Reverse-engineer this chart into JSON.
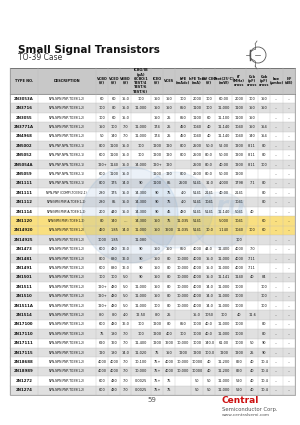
{
  "title": "Small Signal Transistors",
  "subtitle": "TO-39 Case",
  "page_number": "59",
  "bg_color": "#ffffff",
  "header_bg": "#cccccc",
  "alt_row_bg": "#e0e0e0",
  "col_headers": [
    "TYPE NO.",
    "DESCRIPTION",
    "VCBO\n(V)",
    "VCEO\n(V)",
    "VEBO\n(V)",
    "ICBO/IB\n(pA)\n(ICBO/1\nTEST/4\nTEST/6\nTEST/6)",
    "ICEO\n(V)",
    "VCES",
    "hFE\n(mAdc)",
    "hFE Test\n(mA)",
    "BV CEO\n(V)",
    "Ptot(25°C)\n(mW)",
    "fT\n(MHz)\ncross",
    "Ccb\n(pF)\ncross",
    "Cob\n(pF)\ncross",
    "hoe\n(μmho)",
    "NF\n(dB)"
  ],
  "col_widths_rel": [
    18,
    38,
    8,
    8,
    7,
    13,
    8,
    8,
    10,
    8,
    8,
    11,
    9,
    8,
    8,
    8,
    8
  ],
  "rows": [
    [
      "2N3053A",
      "NPN,NPN,PNP,TO39(1,2)",
      "60",
      "60",
      "15.0",
      "100",
      "150",
      "150",
      "100",
      "2000",
      "100",
      "60.00",
      "2000",
      "100",
      "150",
      "...",
      "..."
    ],
    [
      "2N3716",
      "NPN,NPN,PNP,TO39(1,2)",
      "100",
      "80",
      "15.0",
      "11,000",
      "150",
      "150",
      "850",
      "1100",
      "100",
      "11,000",
      "1100",
      "150",
      "150",
      "...",
      "..."
    ],
    [
      "2N3055",
      "NPN,NPN,PNP,TO39(1,2)",
      "100",
      "60",
      "15.0",
      "",
      "150",
      "25",
      "850",
      "1100",
      "60",
      "11,100",
      "1100",
      "150",
      "",
      "...",
      "..."
    ],
    [
      "2N3771A",
      "NPN,NPN,PNP,TO39(1,2)",
      "150",
      "100",
      "7.0",
      "11,000",
      "174",
      "25",
      "450",
      "1040",
      "40",
      "11,140",
      "1040",
      "150",
      "154",
      "...",
      "..."
    ],
    [
      "2N4968",
      "NPN,NPN,PNP,TO39(1,2)",
      "50",
      "140",
      "7.0",
      "11,000",
      "174",
      "25",
      "450",
      "1040",
      "40",
      "11,140",
      "1040",
      "140",
      "154",
      "...",
      "..."
    ],
    [
      "2N5002",
      "NPN,PNP,NPN,TO39(2,1)",
      "800",
      "1100",
      "15.0",
      "100",
      "1200",
      "120",
      "800",
      "2500",
      "50.0",
      "52.00",
      "1200",
      "8.11",
      "80",
      "...",
      "..."
    ],
    [
      "2N5052",
      "NPN,PNP,NPN,TO39(2,1)",
      "600",
      "1100",
      "15.0",
      "100",
      "1200",
      "120",
      "800",
      "2500",
      "80.0",
      "50.00",
      "1200",
      "8.11",
      "80",
      "...",
      "..."
    ],
    [
      "2N5054A",
      "NPN,PNP,NPN,TO39(2,1)",
      "120+",
      "1140",
      "15.0",
      "14,000",
      "120+",
      "120",
      "",
      "2500",
      "80.0",
      "40.00",
      "1200",
      "8.11",
      "100",
      "...",
      "..."
    ],
    [
      "2N5059",
      "NPN,PNP,NPN,TO39(2,1)",
      "600",
      "1100",
      "15.0",
      "",
      "1200",
      "120",
      "800",
      "2500",
      "80.0",
      "50.00",
      "1200",
      "",
      "",
      "...",
      "..."
    ],
    [
      "2N1111",
      "NPN,PNP,NPN,TO39(2,1)",
      "800",
      "175",
      "14.0",
      "90",
      "1100",
      "85",
      "2500",
      "5141",
      "31.0",
      "4,000",
      "1798",
      "7.1",
      "80",
      "...",
      "..."
    ],
    [
      "2N1111",
      "NPN,PNP (COMP),TO39(2,1)",
      "280",
      "175",
      "15.0",
      "14,300",
      "90",
      "75",
      "4.0",
      "5141",
      "2141",
      "40.00",
      "2141",
      "",
      "80",
      "...",
      "..."
    ],
    [
      "2N1112",
      "NPN(NPN,PNP)A,TO39(1,2)",
      "280",
      "85",
      "15.0",
      "14,300",
      "90",
      "75",
      "4.0",
      "5141",
      "1041",
      "",
      "1041",
      "",
      "80",
      "...",
      "..."
    ],
    [
      "2N1114",
      "NPN(NPN,PNP)A,TO39(1,2)",
      "200",
      "440",
      "15.0",
      "14,300",
      "90",
      "45",
      "480",
      "5141",
      "5141",
      "11,140",
      "5041",
      "40",
      "",
      "...",
      "..."
    ],
    [
      "2N1120",
      "NPN(NPN,PNP),TO39(1,2)",
      "80",
      "140",
      "....",
      "14,300",
      "150",
      "75",
      "11,035",
      "5141",
      "",
      "5,000",
      "1041",
      "",
      "60",
      "...",
      "..."
    ],
    [
      "2N14920",
      "NPN,NPN,PNP,TO39(1,2)",
      "460",
      "1.85",
      "14.0",
      "11,000",
      "150",
      "1600",
      "11,035",
      "5141",
      "10.0",
      "1,140",
      "1040",
      "100",
      "60",
      "...",
      "..."
    ],
    [
      "2N14925",
      "NPN,NPN,PNP,TO39(1,2)",
      "1000",
      "1.85",
      "",
      "11,080",
      "",
      "",
      "",
      "",
      "",
      "",
      "100",
      "",
      "",
      "...",
      "..."
    ],
    [
      "2N1473",
      "NPN,NPN,PNP,TO39(1,2)",
      "600",
      "480",
      "16.0",
      "90",
      "150",
      "150",
      "850",
      "4000",
      "44.0",
      "11,400",
      "4000",
      "7.0",
      "",
      "...",
      "..."
    ],
    [
      "2N1481",
      "NPN,NPN,PNP,TO39(1,2)",
      "800",
      "880",
      "16.0",
      "90",
      "150",
      "80",
      "10,000",
      "4000",
      "15.0",
      "11,000",
      "4000",
      "7.11",
      "",
      "...",
      "..."
    ],
    [
      "2N1491",
      "NPN,NPN,PNP,TO39(1,2)",
      "600",
      "880",
      "16.0",
      "90",
      "150",
      "80",
      "10,000",
      "4000",
      "15.0",
      "11,000",
      "4000",
      "7.11",
      "",
      "...",
      "..."
    ],
    [
      "2N1501",
      "NPN,NPN,PNP,TO39(1,2)",
      "100",
      "100",
      "5.0",
      "90",
      "150",
      "80",
      "10,000",
      "4000",
      "15.0",
      "11,141",
      "1140",
      "40",
      "84",
      "...",
      "..."
    ],
    [
      "2N1511",
      "NPN,NPN,PNP,TO39(1,2)",
      "120+",
      "480",
      "5.0",
      "11,000",
      "150",
      "80",
      "10,000",
      "4000",
      "14.0",
      "11,000",
      "1000",
      "",
      "100",
      "...",
      "..."
    ],
    [
      "2N1510",
      "NPN,NPN,PNP,TO39(1,2)",
      "120+",
      "480",
      "5.0",
      "11,000",
      "150",
      "80",
      "10,000",
      "4000",
      "14.0",
      "11,000",
      "1000",
      "",
      "100",
      "...",
      "..."
    ],
    [
      "2N1511A",
      "NPN,NPN,PNP,TO39(1,2)",
      "120+",
      "480",
      "5.0",
      "11,000",
      "100",
      "80",
      "10,000",
      "4000",
      "14.0",
      "11,000",
      "1000",
      "",
      "100",
      "...",
      "..."
    ],
    [
      "2N1514",
      "NPN,NPN,PNP,TO39(1,2)",
      "8.0",
      "8.0",
      "4.0",
      "12.50",
      "8.0",
      "25",
      "",
      "15.0",
      "1050",
      "100",
      "40",
      "11.6",
      "",
      "...",
      "..."
    ],
    [
      "2N17100",
      "NPN,NPN,PNP,TO39(1,2)",
      "600",
      "480",
      "16.0",
      "100",
      "1200",
      "80",
      "850",
      "1000",
      "40.0",
      "11,000",
      "1000",
      "",
      "80",
      "...",
      "..."
    ],
    [
      "2N17110",
      "NPN,NPN,PNP,TO39(1,2)",
      "75",
      "180",
      "7.0",
      "100",
      "1200",
      "400",
      "100",
      "1000",
      "40.0",
      "11,000",
      "1000",
      "",
      "80",
      "...",
      "..."
    ],
    [
      "2N17111",
      "NPN,NPN,PNP,TO39(1,2)",
      "620",
      "160",
      "7.0",
      "11,400",
      "1200",
      "1600",
      "10,000",
      "1000",
      "140.0",
      "61.00",
      "1000",
      "50",
      "90",
      "...",
      "..."
    ],
    [
      "2N17115",
      "NPN,NPN,PNP,TO39(1,2)",
      "120",
      "180",
      "14.0",
      "11,020",
      "75",
      "150",
      "1200",
      "1200",
      "100.0",
      "1200",
      "1200",
      "25",
      "90",
      "...",
      "..."
    ],
    [
      "2N18688",
      "NPN,NPN,PNP,TO39(1,2)",
      "4000",
      "4000",
      "7.0",
      "10,100",
      "75+",
      "4000",
      "10,000",
      "10000",
      "40",
      "11,200",
      "860",
      "40",
      "10.4",
      "...",
      "..."
    ],
    [
      "2N18989",
      "NPN,NPN,PNP,TO39(1,2)",
      "4000",
      "4000",
      "7.0",
      "10,000",
      "75+",
      "4000",
      "10,000",
      "10000",
      "40",
      "11,200",
      "860",
      "40",
      "10.4",
      "...",
      "..."
    ],
    [
      "2N1272",
      "NPN,NPN,PNP,TO39(1,2)",
      "600",
      "480",
      "7.0",
      "0.0025",
      "75+",
      "75",
      "",
      "50",
      "50",
      "11,000",
      "520",
      "40",
      "10.4",
      "...",
      "..."
    ],
    [
      "2N1274",
      "NPN,NPN,PNP,TO39(1,2)",
      "600",
      "480",
      "7.0",
      "0.0025",
      "75+",
      "75",
      "",
      "50",
      "50",
      "11,000",
      "520",
      "40",
      "10.4",
      "...",
      "..."
    ]
  ],
  "highlight_rows": [
    13,
    14
  ],
  "highlight_color": "#f5c518",
  "watermark_color": "#6699cc",
  "logo_red": "#cc1111",
  "logo_gray": "#555555"
}
